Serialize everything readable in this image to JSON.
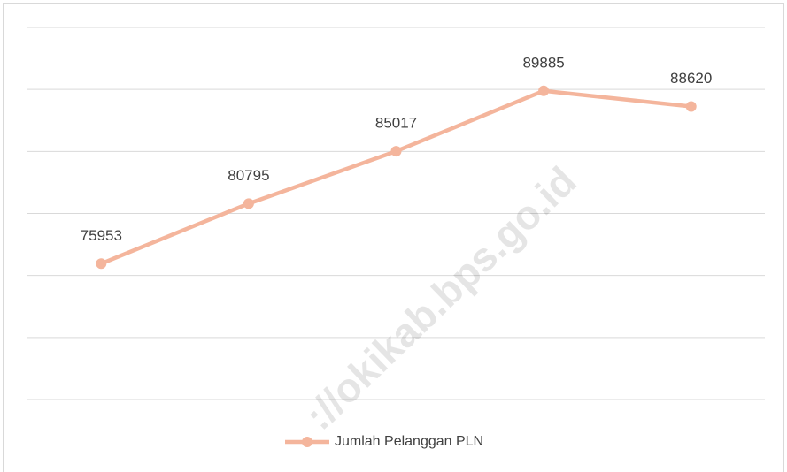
{
  "chart_data": {
    "type": "line",
    "categories": [
      null,
      null,
      null,
      null,
      null
    ],
    "series": [
      {
        "name": "Jumlah Pelanggan PLN",
        "color": "#f4b59c",
        "values": [
          75953,
          80795,
          85017,
          89885,
          88620
        ]
      }
    ],
    "ylim": [
      65000,
      95000
    ],
    "yticks": [
      65000,
      70000,
      75000,
      80000,
      85000,
      90000,
      95000
    ],
    "grid": true,
    "legend": "bottom",
    "watermark": "://okikab.bps.go.id"
  }
}
